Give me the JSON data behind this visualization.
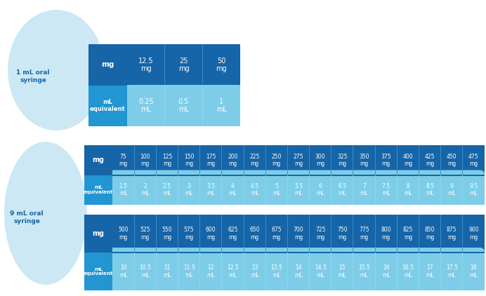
{
  "background_color": "#ffffff",
  "light_blue_oval": "#cce8f4",
  "dark_blue": "#1565a8",
  "medium_blue": "#2196d3",
  "light_blue": "#7ecde8",
  "lighter_blue": "#a8ddf0",
  "table1_label": "1 mL oral\nsyringe",
  "table1_mg": [
    "12.5\nmg",
    "25\nmg",
    "50\nmg"
  ],
  "table1_ml": [
    "0.25\nmL",
    "0.5\nmL",
    "1\nmL"
  ],
  "table2_label": "9 mL oral\nsyringe",
  "table2_mg": [
    "75\nmg",
    "100\nmg",
    "125\nmg",
    "150\nmg",
    "175\nmg",
    "200\nmg",
    "225\nmg",
    "250\nmg",
    "275\nmg",
    "300\nmg",
    "325\nmg",
    "350\nmg",
    "375\nmg",
    "400\nmg",
    "425\nmg",
    "450\nmg",
    "475\nmg"
  ],
  "table2_ml": [
    "1.5\nmL",
    "2\nmL",
    "2.5\nmL",
    "3\nmL",
    "3.5\nmL",
    "4\nmL",
    "4.5\nmL",
    "5\nmL",
    "5.5\nmL",
    "6\nmL",
    "6.5\nmL",
    "7\nmL",
    "7.5\nmL",
    "8\nmL",
    "8.5\nmL",
    "9\nmL",
    "9.5\nmL"
  ],
  "table3_mg": [
    "500\nmg",
    "525\nmg",
    "550\nmg",
    "575\nmg",
    "600\nmg",
    "625\nmg",
    "650\nmg",
    "675\nmg",
    "700\nmg",
    "725\nmg",
    "750\nmg",
    "775\nmg",
    "800\nmg",
    "825\nmg",
    "850\nmg",
    "875\nmg",
    "900\nmg"
  ],
  "table3_ml": [
    "10\nmL",
    "10.5\nmL",
    "11\nmL",
    "11.5\nmL",
    "12\nmL",
    "12.5\nmL",
    "13\nmL",
    "13.5\nmL",
    "14\nmL",
    "14.5\nmL",
    "15\nmL",
    "15.5\nmL",
    "16\nmL",
    "16.5\nmL",
    "17\nmL",
    "17.5\nmL",
    "18\nmL"
  ],
  "white": "#ffffff",
  "label_color": "#1565a8",
  "divider_dark": "#3a8fc4",
  "divider_light": "#8ed4ec"
}
